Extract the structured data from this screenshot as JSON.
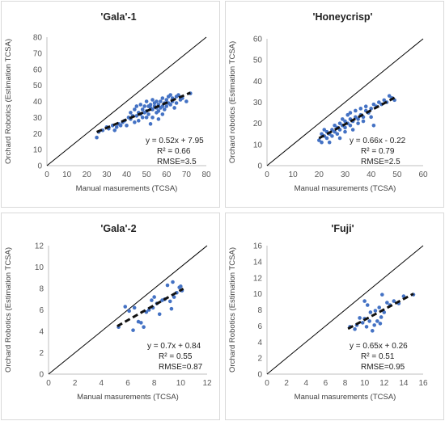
{
  "chart_data": [
    {
      "type": "scatter",
      "title": "'Gala'-1",
      "xlabel": "Manual masurements  (TCSA)",
      "ylabel": "Orchard Robotics (Estimation TCSA)",
      "xlim": [
        0,
        80
      ],
      "ylim": [
        0,
        80
      ],
      "xticks": [
        0,
        10,
        20,
        30,
        40,
        50,
        60,
        70,
        80
      ],
      "yticks": [
        0,
        10,
        20,
        30,
        40,
        50,
        60,
        70,
        80
      ],
      "grid": false,
      "equation": "y = 0.52x + 7.95",
      "r2": "R² = 0.66",
      "rmse": "RMSE=3.5",
      "trendline": {
        "slope": 0.52,
        "intercept": 7.95,
        "x_range": [
          25,
          72
        ]
      },
      "points": [
        [
          25,
          17.5
        ],
        [
          26,
          21
        ],
        [
          28,
          22
        ],
        [
          30,
          24
        ],
        [
          31,
          23
        ],
        [
          33,
          25
        ],
        [
          34,
          22
        ],
        [
          35,
          24
        ],
        [
          36,
          26
        ],
        [
          37,
          25
        ],
        [
          38,
          27
        ],
        [
          39,
          28
        ],
        [
          40,
          25
        ],
        [
          41,
          30
        ],
        [
          42,
          29
        ],
        [
          42,
          33
        ],
        [
          43,
          31
        ],
        [
          44,
          27
        ],
        [
          44,
          35
        ],
        [
          45,
          31
        ],
        [
          45,
          37
        ],
        [
          46,
          33
        ],
        [
          46,
          28
        ],
        [
          47,
          32
        ],
        [
          47,
          38
        ],
        [
          48,
          35
        ],
        [
          48,
          30
        ],
        [
          49,
          37
        ],
        [
          49,
          33
        ],
        [
          50,
          30
        ],
        [
          50,
          34
        ],
        [
          50,
          40
        ],
        [
          51,
          37
        ],
        [
          51,
          32
        ],
        [
          52,
          38
        ],
        [
          52,
          36
        ],
        [
          52,
          26
        ],
        [
          53,
          35
        ],
        [
          53,
          41
        ],
        [
          53,
          30
        ],
        [
          54,
          37
        ],
        [
          54,
          39
        ],
        [
          55,
          33
        ],
        [
          55,
          40
        ],
        [
          55,
          36
        ],
        [
          56,
          38
        ],
        [
          56,
          34
        ],
        [
          56,
          29
        ],
        [
          57,
          40
        ],
        [
          57,
          36
        ],
        [
          58,
          37
        ],
        [
          58,
          42
        ],
        [
          58,
          32
        ],
        [
          59,
          39
        ],
        [
          59,
          35
        ],
        [
          60,
          41
        ],
        [
          60,
          37
        ],
        [
          61,
          43
        ],
        [
          61,
          39
        ],
        [
          62,
          38
        ],
        [
          62,
          44
        ],
        [
          63,
          40
        ],
        [
          63,
          42
        ],
        [
          64,
          36
        ],
        [
          65,
          43
        ],
        [
          65,
          39
        ],
        [
          66,
          44
        ],
        [
          67,
          41
        ],
        [
          68,
          42
        ],
        [
          70,
          40
        ],
        [
          72,
          45
        ]
      ]
    },
    {
      "type": "scatter",
      "title": "'Honeycrisp'",
      "xlabel": "Manual masurements  (TCSA)",
      "ylabel": "Orchard robotics (Estimation TCSA)",
      "xlim": [
        0,
        60
      ],
      "ylim": [
        0,
        60
      ],
      "xticks": [
        0,
        10,
        20,
        30,
        40,
        50,
        60
      ],
      "yticks": [
        0,
        10,
        20,
        30,
        40,
        50,
        60
      ],
      "grid": false,
      "equation": "y = 0.66x - 0.22",
      "r2": "R² = 0.79",
      "rmse": "RMSE=2.5",
      "trendline": {
        "slope": 0.66,
        "intercept": -0.22,
        "x_range": [
          20,
          49
        ]
      },
      "points": [
        [
          20,
          12
        ],
        [
          21,
          15
        ],
        [
          21,
          11
        ],
        [
          22,
          14
        ],
        [
          22,
          17
        ],
        [
          23,
          13
        ],
        [
          23,
          16
        ],
        [
          24,
          15
        ],
        [
          24,
          11
        ],
        [
          25,
          17
        ],
        [
          25,
          14
        ],
        [
          26,
          16
        ],
        [
          26,
          19
        ],
        [
          27,
          18
        ],
        [
          27,
          15
        ],
        [
          28,
          20
        ],
        [
          28,
          17
        ],
        [
          28,
          13
        ],
        [
          29,
          19
        ],
        [
          29,
          22
        ],
        [
          30,
          18
        ],
        [
          30,
          21
        ],
        [
          30,
          16
        ],
        [
          31,
          20
        ],
        [
          31,
          24
        ],
        [
          32,
          22
        ],
        [
          32,
          19
        ],
        [
          32,
          25
        ],
        [
          33,
          21
        ],
        [
          33,
          17
        ],
        [
          34,
          23
        ],
        [
          34,
          26
        ],
        [
          35,
          22
        ],
        [
          35,
          20
        ],
        [
          36,
          24
        ],
        [
          36,
          27
        ],
        [
          37,
          23
        ],
        [
          37,
          21
        ],
        [
          38,
          26
        ],
        [
          38,
          28
        ],
        [
          39,
          25
        ],
        [
          40,
          27
        ],
        [
          40,
          23
        ],
        [
          41,
          29
        ],
        [
          41,
          19
        ],
        [
          42,
          28
        ],
        [
          43,
          30
        ],
        [
          44,
          29
        ],
        [
          45,
          31
        ],
        [
          46,
          30
        ],
        [
          47,
          33
        ],
        [
          48,
          32
        ],
        [
          49,
          31
        ]
      ]
    },
    {
      "type": "scatter",
      "title": "'Gala'-2",
      "xlabel": "Manual masurements  (TCSA)",
      "ylabel": "Orchard Robotics (Estimation TCSA)",
      "xlim": [
        0,
        12
      ],
      "ylim": [
        0,
        12
      ],
      "xticks": [
        0,
        2,
        4,
        6,
        8,
        10,
        12
      ],
      "yticks": [
        0,
        2,
        4,
        6,
        8,
        10,
        12
      ],
      "grid": false,
      "equation": "y = 0.7x + 0.84",
      "r2": "R² = 0.55",
      "rmse": "RMSE=0.87",
      "trendline": {
        "slope": 0.7,
        "intercept": 0.84,
        "x_range": [
          5.2,
          10.2
        ]
      },
      "points": [
        [
          5.3,
          4.4
        ],
        [
          5.8,
          6.3
        ],
        [
          6.1,
          5.9
        ],
        [
          6.4,
          4.1
        ],
        [
          6.5,
          6.2
        ],
        [
          6.8,
          4.9
        ],
        [
          7.0,
          4.8
        ],
        [
          7.2,
          4.4
        ],
        [
          7.4,
          5.8
        ],
        [
          7.6,
          6.0
        ],
        [
          7.8,
          6.9
        ],
        [
          7.9,
          6.2
        ],
        [
          8.0,
          7.2
        ],
        [
          8.2,
          6.6
        ],
        [
          8.4,
          5.6
        ],
        [
          8.6,
          6.9
        ],
        [
          8.8,
          7.0
        ],
        [
          9.0,
          8.3
        ],
        [
          9.2,
          6.8
        ],
        [
          9.3,
          6.1
        ],
        [
          9.4,
          8.6
        ],
        [
          9.5,
          7.2
        ],
        [
          9.7,
          7.6
        ],
        [
          9.9,
          8.1
        ],
        [
          10.0,
          8.2
        ],
        [
          10.1,
          7.8
        ]
      ]
    },
    {
      "type": "scatter",
      "title": "'Fuji'",
      "xlabel": "Manual masurements  (TCSA)",
      "ylabel": "Orchard Robotics (Estimation TCSA)",
      "xlim": [
        0,
        16
      ],
      "ylim": [
        0,
        16
      ],
      "xticks": [
        0,
        2,
        4,
        6,
        8,
        10,
        12,
        14,
        16
      ],
      "yticks": [
        0,
        2,
        4,
        6,
        8,
        10,
        12,
        14,
        16
      ],
      "grid": false,
      "equation": "y = 0.65x + 0.26",
      "r2": "R² = 0.51",
      "rmse": "RMSE=0.95",
      "trendline": {
        "slope": 0.65,
        "intercept": 0.26,
        "x_range": [
          8.3,
          15
        ]
      },
      "points": [
        [
          8.5,
          5.9
        ],
        [
          9.0,
          5.6
        ],
        [
          9.2,
          6.1
        ],
        [
          9.5,
          7.0
        ],
        [
          9.8,
          6.4
        ],
        [
          10.0,
          9.1
        ],
        [
          10.0,
          6.9
        ],
        [
          10.2,
          5.9
        ],
        [
          10.3,
          8.6
        ],
        [
          10.5,
          6.6
        ],
        [
          10.6,
          7.7
        ],
        [
          10.8,
          5.4
        ],
        [
          11.0,
          6.1
        ],
        [
          11.1,
          7.9
        ],
        [
          11.3,
          6.6
        ],
        [
          11.5,
          8.3
        ],
        [
          11.6,
          6.3
        ],
        [
          11.7,
          7.1
        ],
        [
          11.8,
          9.9
        ],
        [
          12.0,
          7.7
        ],
        [
          12.3,
          8.9
        ],
        [
          12.6,
          8.6
        ],
        [
          13.0,
          9.1
        ],
        [
          13.5,
          8.8
        ],
        [
          14.0,
          9.7
        ],
        [
          15.0,
          9.9
        ]
      ]
    }
  ]
}
